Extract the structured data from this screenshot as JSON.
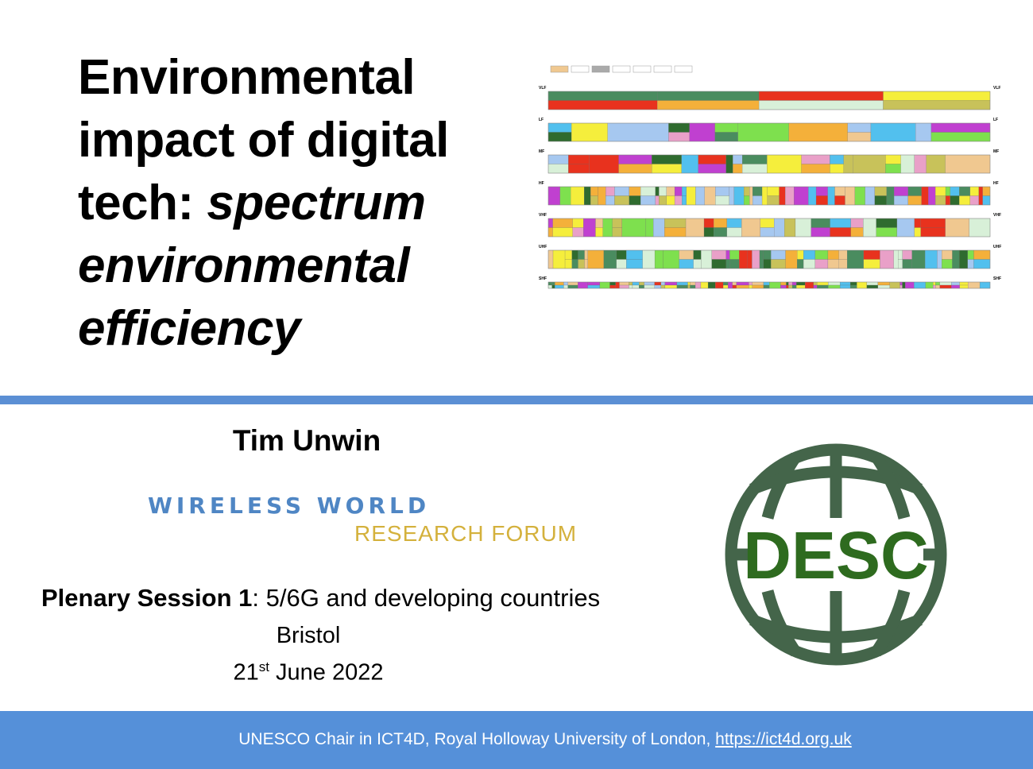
{
  "slide": {
    "title_lines": [
      "Environmental",
      "impact of digital",
      "tech: ",
      "spectrum",
      "environmental",
      "efficiency"
    ],
    "author": "Tim Unwin",
    "organization_logo": {
      "line1": "WIRELESS WORLD",
      "line2": "RESEARCH FORUM"
    },
    "session": {
      "label": "Plenary Session 1",
      "topic": ": 5/6G and developing countries"
    },
    "city": "Bristol",
    "date": {
      "day": "21",
      "suffix": "st",
      "rest": " June 2022"
    },
    "desc_logo": {
      "text": "DESC",
      "ring_color": "#44654a",
      "text_color": "#2e6b1f"
    },
    "footer": {
      "text": "UNESCO Chair in ICT4D, Royal Holloway University of London, ",
      "link": "https://ict4d.org.uk"
    }
  },
  "spectrum_chart": {
    "bands": [
      "VLF",
      "LF",
      "MF",
      "HF",
      "VHF",
      "UHF",
      "SHF"
    ]
  },
  "colors": {
    "accent_blue": "#5590d9",
    "rule_blue": "#5b8fd4"
  }
}
